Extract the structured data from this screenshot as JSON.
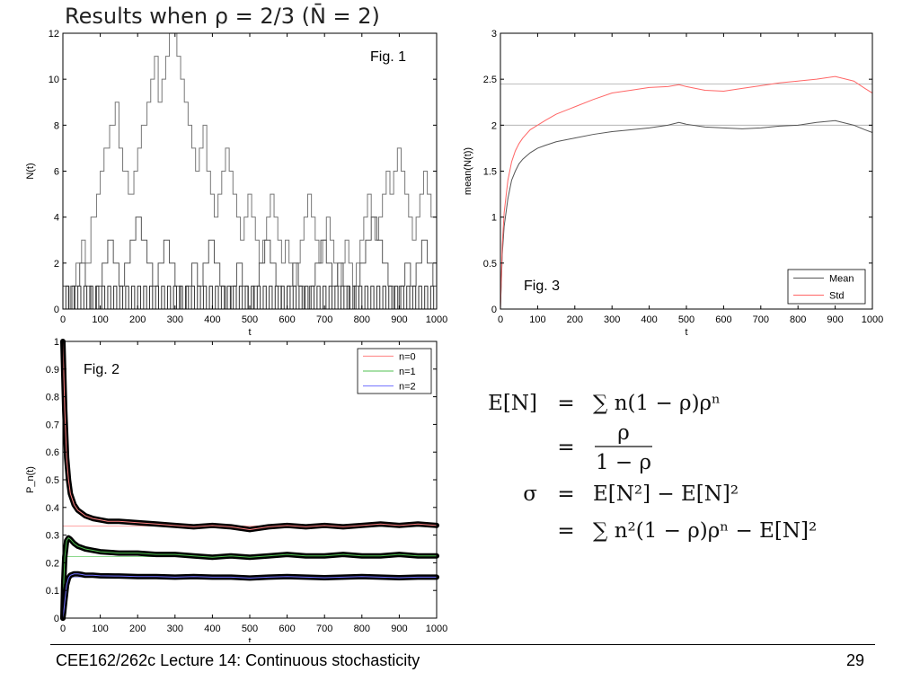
{
  "slide": {
    "title": "Results when ρ = 2/3 (N̄ = 2)",
    "footer": "CEE162/262c Lecture 14:  Continuous stochasticity",
    "page_number": "29"
  },
  "equations": [
    {
      "lhs": "E[N]",
      "op": "=",
      "rhs": "∑ n(1 − ρ)ρⁿ"
    },
    {
      "lhs": "",
      "op": "=",
      "rhs_num": "ρ",
      "rhs_den": "1 − ρ"
    },
    {
      "lhs": "σ",
      "op": "=",
      "rhs": "E[N²] − E[N]²"
    },
    {
      "lhs": "",
      "op": "=",
      "rhs": "∑ n²(1 − ρ)ρⁿ − E[N]²"
    }
  ],
  "chart_data": [
    {
      "id": "fig1",
      "type": "line",
      "annotation": "Fig. 1",
      "xlabel": "t",
      "ylabel": "N(t)",
      "xlim": [
        0,
        1000
      ],
      "ylim": [
        0,
        12
      ],
      "xticks": [
        0,
        100,
        200,
        300,
        400,
        500,
        600,
        700,
        800,
        900,
        1000
      ],
      "yticks": [
        0,
        2,
        4,
        6,
        8,
        10,
        12
      ],
      "grid": false,
      "series": [
        {
          "color": "#777777",
          "step": true,
          "x": [
            0,
            20,
            35,
            50,
            60,
            75,
            90,
            100,
            110,
            125,
            140,
            150,
            160,
            175,
            190,
            200,
            210,
            225,
            235,
            245,
            255,
            265,
            275,
            285,
            295,
            305,
            315,
            325,
            335,
            345,
            355,
            365,
            375,
            385,
            395,
            405,
            415,
            425,
            435,
            445,
            455,
            465,
            475,
            485,
            495,
            505,
            515,
            525,
            535,
            545,
            555,
            565,
            575,
            585,
            595,
            605,
            615,
            625,
            635,
            645,
            655,
            665,
            675,
            685,
            695,
            705,
            715,
            725,
            735,
            745,
            755,
            765,
            775,
            785,
            795,
            805,
            815,
            825,
            835,
            845,
            855,
            865,
            875,
            885,
            895,
            905,
            915,
            925,
            935,
            945,
            955,
            965,
            975,
            985,
            1000
          ],
          "y": [
            0,
            1,
            2,
            3,
            2,
            4,
            5,
            6,
            7,
            8,
            9,
            7,
            6,
            5,
            6,
            7,
            8,
            9,
            10,
            11,
            9,
            10,
            11,
            12,
            12,
            11,
            10,
            9,
            8,
            7,
            6,
            7,
            8,
            6,
            5,
            4,
            5,
            6,
            7,
            6,
            5,
            4,
            3,
            4,
            5,
            4,
            3,
            2,
            3,
            4,
            5,
            4,
            3,
            2,
            3,
            2,
            1,
            2,
            3,
            4,
            5,
            4,
            3,
            2,
            3,
            4,
            3,
            2,
            1,
            2,
            3,
            2,
            1,
            2,
            3,
            4,
            5,
            4,
            3,
            4,
            5,
            6,
            5,
            6,
            7,
            6,
            5,
            4,
            3,
            4,
            5,
            6,
            5,
            4,
            3
          ]
        },
        {
          "color": "#555555",
          "step": true,
          "x": [
            0,
            15,
            30,
            45,
            60,
            75,
            90,
            105,
            120,
            135,
            150,
            165,
            180,
            195,
            210,
            225,
            240,
            255,
            270,
            285,
            300,
            315,
            330,
            345,
            360,
            375,
            390,
            405,
            420,
            435,
            450,
            465,
            480,
            495,
            510,
            525,
            540,
            555,
            570,
            585,
            600,
            615,
            630,
            645,
            660,
            675,
            690,
            705,
            720,
            735,
            750,
            765,
            780,
            795,
            810,
            825,
            840,
            855,
            870,
            885,
            900,
            915,
            930,
            945,
            960,
            975,
            990,
            1000
          ],
          "y": [
            1,
            0,
            1,
            2,
            1,
            0,
            1,
            2,
            3,
            2,
            1,
            2,
            3,
            4,
            3,
            2,
            1,
            2,
            3,
            2,
            1,
            0,
            1,
            2,
            1,
            2,
            3,
            2,
            1,
            0,
            1,
            2,
            1,
            0,
            1,
            2,
            3,
            2,
            1,
            0,
            1,
            2,
            1,
            0,
            1,
            2,
            3,
            2,
            1,
            2,
            1,
            0,
            1,
            2,
            3,
            4,
            3,
            2,
            1,
            0,
            1,
            2,
            1,
            2,
            3,
            2,
            1,
            0
          ]
        },
        {
          "color": "#333333",
          "step": true,
          "x": [
            0,
            8,
            16,
            24,
            32,
            40,
            48,
            56,
            64,
            72,
            80,
            88,
            96,
            104,
            112,
            120,
            128,
            136,
            144,
            152,
            160,
            168,
            176,
            184,
            192,
            200,
            208,
            216,
            224,
            232,
            240,
            248,
            256,
            264,
            272,
            280,
            288,
            296,
            304,
            312,
            320,
            328,
            336,
            344,
            352,
            360,
            368,
            376,
            384,
            392,
            400,
            408,
            416,
            424,
            432,
            440,
            448,
            456,
            464,
            472,
            480,
            488,
            496,
            504,
            512,
            520,
            528,
            536,
            544,
            552,
            560,
            568,
            576,
            584,
            592,
            600,
            608,
            616,
            624,
            632,
            640,
            648,
            656,
            664,
            672,
            680,
            688,
            696,
            704,
            712,
            720,
            728,
            736,
            744,
            752,
            760,
            768,
            776,
            784,
            792,
            800,
            808,
            816,
            824,
            832,
            840,
            848,
            856,
            864,
            872,
            880,
            888,
            896,
            904,
            912,
            920,
            928,
            936,
            944,
            952,
            960,
            968,
            976,
            984,
            992,
            1000
          ],
          "y": [
            0,
            1,
            0,
            1,
            0,
            1,
            0,
            1,
            0,
            1,
            0,
            1,
            0,
            1,
            0,
            1,
            0,
            1,
            0,
            1,
            0,
            1,
            0,
            1,
            0,
            1,
            0,
            1,
            0,
            1,
            0,
            1,
            0,
            1,
            0,
            1,
            0,
            1,
            0,
            1,
            0,
            1,
            0,
            1,
            0,
            1,
            0,
            1,
            0,
            1,
            0,
            1,
            0,
            1,
            0,
            1,
            0,
            1,
            0,
            1,
            0,
            1,
            0,
            1,
            0,
            1,
            0,
            1,
            0,
            1,
            0,
            1,
            0,
            1,
            0,
            1,
            0,
            1,
            0,
            1,
            0,
            1,
            0,
            1,
            0,
            1,
            0,
            1,
            0,
            1,
            0,
            1,
            0,
            1,
            0,
            1,
            0,
            1,
            0,
            1,
            0,
            1,
            0,
            1,
            0,
            1,
            0,
            1,
            0,
            1,
            0,
            1,
            0,
            1,
            0,
            1,
            0,
            1,
            0,
            1,
            0,
            1,
            0,
            1,
            0,
            1
          ]
        }
      ]
    },
    {
      "id": "fig2",
      "type": "line",
      "annotation": "Fig. 2",
      "xlabel": "t",
      "ylabel": "P_n(t)",
      "xlim": [
        0,
        1000
      ],
      "ylim": [
        0,
        1
      ],
      "xticks": [
        0,
        100,
        200,
        300,
        400,
        500,
        600,
        700,
        800,
        900,
        1000
      ],
      "yticks": [
        0,
        0.1,
        0.2,
        0.3,
        0.4,
        0.5,
        0.6,
        0.7,
        0.8,
        0.9,
        1
      ],
      "grid": false,
      "legend": {
        "position": "top-right"
      },
      "reference_lines": [
        {
          "value": 0.333,
          "color": "#ff9999"
        },
        {
          "value": 0.222,
          "color": "#66cc66"
        },
        {
          "value": 0.148,
          "color": "#9999ff"
        }
      ],
      "series": [
        {
          "name": "n=0",
          "color": "#ff8080",
          "markers": true,
          "x": [
            0,
            2,
            5,
            10,
            15,
            20,
            30,
            40,
            50,
            60,
            80,
            100,
            120,
            150,
            200,
            250,
            300,
            350,
            400,
            450,
            500,
            550,
            600,
            650,
            700,
            750,
            800,
            850,
            900,
            950,
            1000
          ],
          "y": [
            1.0,
            0.9,
            0.75,
            0.58,
            0.5,
            0.45,
            0.41,
            0.39,
            0.38,
            0.37,
            0.36,
            0.355,
            0.35,
            0.35,
            0.345,
            0.34,
            0.335,
            0.33,
            0.335,
            0.33,
            0.32,
            0.33,
            0.335,
            0.33,
            0.335,
            0.33,
            0.335,
            0.34,
            0.335,
            0.34,
            0.335
          ]
        },
        {
          "name": "n=1",
          "color": "#50c050",
          "markers": true,
          "x": [
            0,
            2,
            5,
            10,
            15,
            20,
            30,
            40,
            50,
            60,
            80,
            100,
            150,
            200,
            250,
            300,
            350,
            400,
            450,
            500,
            550,
            600,
            650,
            700,
            750,
            800,
            850,
            900,
            950,
            1000
          ],
          "y": [
            0.0,
            0.12,
            0.22,
            0.28,
            0.29,
            0.285,
            0.27,
            0.26,
            0.255,
            0.25,
            0.245,
            0.24,
            0.235,
            0.235,
            0.23,
            0.23,
            0.225,
            0.22,
            0.225,
            0.22,
            0.225,
            0.23,
            0.225,
            0.225,
            0.23,
            0.225,
            0.225,
            0.23,
            0.225,
            0.225
          ]
        },
        {
          "name": "n=2",
          "color": "#7070ff",
          "markers": true,
          "x": [
            0,
            2,
            5,
            10,
            15,
            20,
            30,
            40,
            50,
            60,
            80,
            100,
            150,
            200,
            250,
            300,
            350,
            400,
            450,
            500,
            550,
            600,
            650,
            700,
            750,
            800,
            850,
            900,
            950,
            1000
          ],
          "y": [
            0.0,
            0.02,
            0.06,
            0.12,
            0.145,
            0.155,
            0.16,
            0.16,
            0.158,
            0.155,
            0.155,
            0.153,
            0.152,
            0.15,
            0.15,
            0.148,
            0.15,
            0.148,
            0.148,
            0.145,
            0.148,
            0.15,
            0.148,
            0.146,
            0.148,
            0.15,
            0.148,
            0.146,
            0.148,
            0.148
          ]
        }
      ]
    },
    {
      "id": "fig3",
      "type": "line",
      "annotation": "Fig. 3",
      "xlabel": "t",
      "ylabel": "mean(N(t))",
      "xlim": [
        0,
        1000
      ],
      "ylim": [
        0,
        3
      ],
      "xticks": [
        0,
        100,
        200,
        300,
        400,
        500,
        600,
        700,
        800,
        900,
        1000
      ],
      "yticks": [
        0,
        0.5,
        1,
        1.5,
        2,
        2.5,
        3
      ],
      "grid": false,
      "legend": {
        "position": "bottom-right"
      },
      "reference_lines": [
        {
          "value": 2.0,
          "color": "#aaaaaa"
        },
        {
          "value": 2.449,
          "color": "#aaaaaa"
        }
      ],
      "series": [
        {
          "name": "Mean",
          "color": "#555555",
          "x": [
            0,
            5,
            10,
            20,
            30,
            40,
            50,
            60,
            80,
            100,
            120,
            150,
            200,
            250,
            300,
            350,
            400,
            450,
            480,
            500,
            550,
            600,
            650,
            700,
            750,
            800,
            850,
            900,
            950,
            980,
            1000
          ],
          "y": [
            0,
            0.6,
            0.9,
            1.2,
            1.4,
            1.5,
            1.58,
            1.63,
            1.7,
            1.75,
            1.78,
            1.82,
            1.86,
            1.9,
            1.93,
            1.95,
            1.97,
            2.0,
            2.03,
            2.01,
            1.98,
            1.97,
            1.96,
            1.97,
            1.99,
            2.0,
            2.03,
            2.05,
            2.0,
            1.95,
            1.92
          ]
        },
        {
          "name": "Std",
          "color": "#ff6666",
          "x": [
            0,
            5,
            10,
            20,
            30,
            40,
            50,
            60,
            80,
            100,
            120,
            150,
            200,
            250,
            300,
            350,
            400,
            450,
            480,
            500,
            550,
            600,
            650,
            700,
            750,
            800,
            850,
            900,
            950,
            980,
            1000
          ],
          "y": [
            0,
            0.7,
            1.05,
            1.4,
            1.6,
            1.72,
            1.8,
            1.86,
            1.95,
            2.0,
            2.05,
            2.12,
            2.2,
            2.28,
            2.35,
            2.38,
            2.41,
            2.42,
            2.44,
            2.42,
            2.38,
            2.37,
            2.4,
            2.43,
            2.46,
            2.48,
            2.5,
            2.53,
            2.48,
            2.4,
            2.35
          ]
        }
      ]
    }
  ]
}
